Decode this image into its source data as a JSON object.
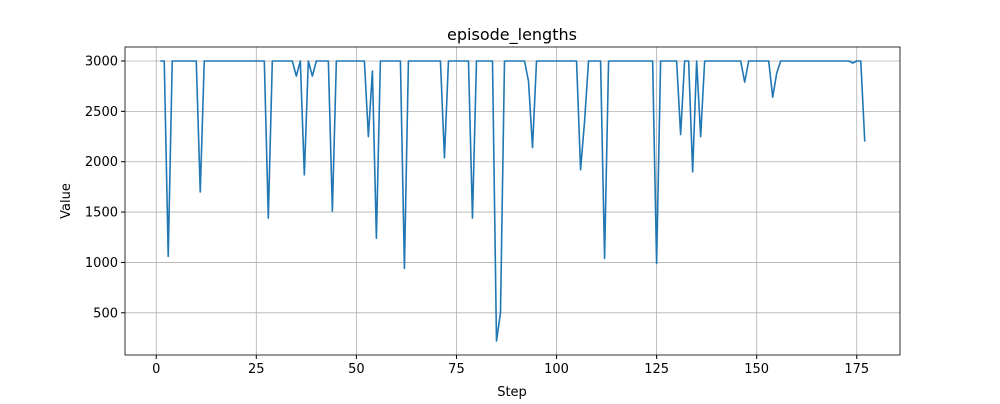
{
  "chart_data": {
    "type": "line",
    "title": "episode_lengths",
    "xlabel": "Step",
    "ylabel": "Value",
    "x": [
      1,
      2,
      3,
      4,
      5,
      6,
      7,
      8,
      9,
      10,
      11,
      12,
      13,
      14,
      15,
      16,
      17,
      18,
      19,
      20,
      21,
      22,
      23,
      24,
      25,
      26,
      27,
      28,
      29,
      30,
      31,
      32,
      33,
      34,
      35,
      36,
      37,
      38,
      39,
      40,
      41,
      42,
      43,
      44,
      45,
      46,
      47,
      48,
      49,
      50,
      51,
      52,
      53,
      54,
      55,
      56,
      57,
      58,
      59,
      60,
      61,
      62,
      63,
      64,
      65,
      66,
      67,
      68,
      69,
      70,
      71,
      72,
      73,
      74,
      75,
      76,
      77,
      78,
      79,
      80,
      81,
      82,
      83,
      84,
      85,
      86,
      87,
      88,
      89,
      90,
      91,
      92,
      93,
      94,
      95,
      96,
      97,
      98,
      99,
      100,
      101,
      102,
      103,
      104,
      105,
      106,
      107,
      108,
      109,
      110,
      111,
      112,
      113,
      114,
      115,
      116,
      117,
      118,
      119,
      120,
      121,
      122,
      123,
      124,
      125,
      126,
      127,
      128,
      129,
      130,
      131,
      132,
      133,
      134,
      135,
      136,
      137,
      138,
      139,
      140,
      141,
      142,
      143,
      144,
      145,
      146,
      147,
      148,
      149,
      150,
      151,
      152,
      153,
      154,
      155,
      156,
      157,
      158,
      159,
      160,
      161,
      162,
      163,
      164,
      165,
      166,
      167,
      168,
      169,
      170,
      171,
      172,
      173,
      174,
      175,
      176,
      177
    ],
    "series": [
      {
        "name": "episode_lengths",
        "color": "#1f77b4",
        "values": [
          3000,
          3000,
          1060,
          3000,
          3000,
          3000,
          3000,
          3000,
          3000,
          3000,
          1700,
          3000,
          3000,
          3000,
          3000,
          3000,
          3000,
          3000,
          3000,
          3000,
          3000,
          3000,
          3000,
          3000,
          3000,
          3000,
          3000,
          1440,
          3000,
          3000,
          3000,
          3000,
          3000,
          3000,
          2850,
          3000,
          1870,
          3000,
          2850,
          3000,
          3000,
          3000,
          3000,
          1510,
          3000,
          3000,
          3000,
          3000,
          3000,
          3000,
          3000,
          3000,
          2250,
          2900,
          1240,
          3000,
          3000,
          3000,
          3000,
          3000,
          3000,
          940,
          3000,
          3000,
          3000,
          3000,
          3000,
          3000,
          3000,
          3000,
          3000,
          2040,
          3000,
          3000,
          3000,
          3000,
          3000,
          3000,
          1440,
          3000,
          3000,
          3000,
          3000,
          3000,
          220,
          500,
          3000,
          3000,
          3000,
          3000,
          3000,
          3000,
          2800,
          2140,
          3000,
          3000,
          3000,
          3000,
          3000,
          3000,
          3000,
          3000,
          3000,
          3000,
          3000,
          1920,
          2400,
          3000,
          3000,
          3000,
          3000,
          1040,
          3000,
          3000,
          3000,
          3000,
          3000,
          3000,
          3000,
          3000,
          3000,
          3000,
          3000,
          3000,
          990,
          3000,
          3000,
          3000,
          3000,
          3000,
          2270,
          3000,
          3000,
          1900,
          3000,
          2250,
          3000,
          3000,
          3000,
          3000,
          3000,
          3000,
          3000,
          3000,
          3000,
          3000,
          2790,
          3000,
          3000,
          3000,
          3000,
          3000,
          3000,
          2640,
          2880,
          3000,
          3000,
          3000,
          3000,
          3000,
          3000,
          3000,
          3000,
          3000,
          3000,
          3000,
          3000,
          3000,
          3000,
          3000,
          3000,
          3000,
          3000,
          2980,
          3000,
          3000,
          2200
        ]
      }
    ],
    "xlim": [
      -7.8,
      185.8
    ],
    "ylim": [
      81,
      3139
    ],
    "xticks": [
      0,
      25,
      50,
      75,
      100,
      125,
      150,
      175
    ],
    "yticks": [
      500,
      1000,
      1500,
      2000,
      2500,
      3000
    ],
    "grid": true
  }
}
